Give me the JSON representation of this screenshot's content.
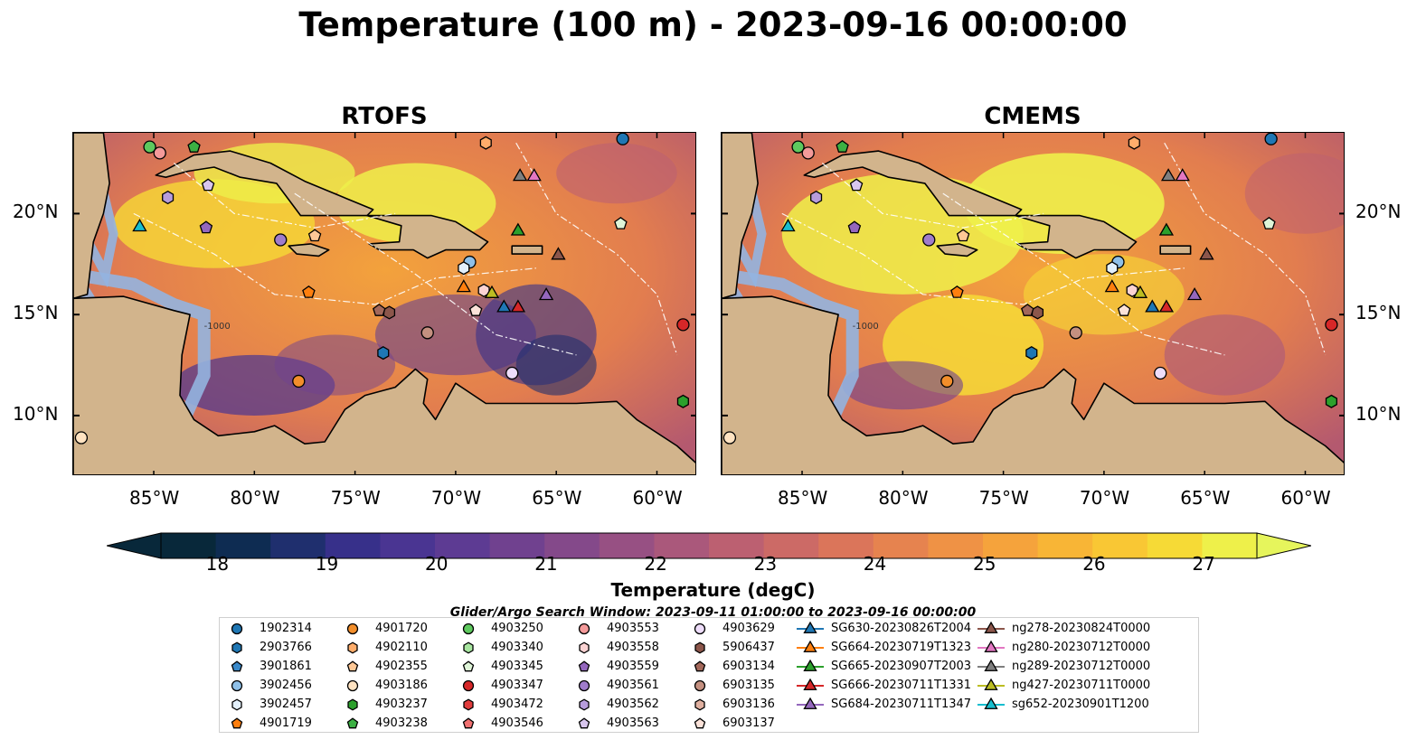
{
  "title": "Temperature (100 m) - 2023-09-16 00:00:00",
  "panels": [
    {
      "title": "RTOFS"
    },
    {
      "title": "CMEMS"
    }
  ],
  "axes": {
    "lon_ticks": [
      "85°W",
      "80°W",
      "75°W",
      "70°W",
      "65°W",
      "60°W"
    ],
    "lat_ticks": [
      "20°N",
      "15°N",
      "10°N"
    ],
    "contour_label": "-1000"
  },
  "colorbar": {
    "ticks": [
      "18",
      "19",
      "20",
      "21",
      "22",
      "23",
      "24",
      "25",
      "26",
      "27"
    ],
    "label": "Temperature (degC)",
    "colors": [
      "#08283a",
      "#0e2c52",
      "#1f2f6e",
      "#37308a",
      "#4a3592",
      "#5d3b93",
      "#70418f",
      "#84498a",
      "#975083",
      "#aa587b",
      "#bc6071",
      "#cc6a66",
      "#db755a",
      "#e6834f",
      "#ef9245",
      "#f5a33c",
      "#f8b536",
      "#f9c734",
      "#f6da36",
      "#eef04a"
    ]
  },
  "legend": {
    "title": "Glider/Argo Search Window: 2023-09-11 01:00:00 to 2023-09-16 00:00:00",
    "columns": [
      [
        {
          "label": "1902314",
          "marker": "circle",
          "color": "#1f77b4"
        },
        {
          "label": "2903766",
          "marker": "hexagon",
          "color": "#1f77b4"
        },
        {
          "label": "3901861",
          "marker": "pentagon",
          "color": "#3a89c9"
        },
        {
          "label": "3902456",
          "marker": "circle",
          "color": "#8fc0e8"
        },
        {
          "label": "3902457",
          "marker": "hexagon",
          "color": "#e3f0fb"
        },
        {
          "label": "4901719",
          "marker": "pentagon",
          "color": "#ff7f0e"
        }
      ],
      [
        {
          "label": "4901720",
          "marker": "circle",
          "color": "#f28e2b"
        },
        {
          "label": "4902110",
          "marker": "hexagon",
          "color": "#ffad6b"
        },
        {
          "label": "4902355",
          "marker": "pentagon",
          "color": "#ffc896"
        },
        {
          "label": "4903186",
          "marker": "circle",
          "color": "#ffe3c2"
        },
        {
          "label": "4903237",
          "marker": "hexagon",
          "color": "#2ca02c"
        },
        {
          "label": "4903238",
          "marker": "pentagon",
          "color": "#3cb043"
        }
      ],
      [
        {
          "label": "4903250",
          "marker": "circle",
          "color": "#5ec95e"
        },
        {
          "label": "4903340",
          "marker": "hexagon",
          "color": "#a8e6a0"
        },
        {
          "label": "4903345",
          "marker": "pentagon",
          "color": "#dff5d8"
        },
        {
          "label": "4903347",
          "marker": "circle",
          "color": "#d62728"
        },
        {
          "label": "4903472",
          "marker": "hexagon",
          "color": "#e03c3c"
        },
        {
          "label": "4903546",
          "marker": "pentagon",
          "color": "#f07070"
        }
      ],
      [
        {
          "label": "4903553",
          "marker": "circle",
          "color": "#f49a9a"
        },
        {
          "label": "4903558",
          "marker": "hexagon",
          "color": "#fbd3d3"
        },
        {
          "label": "4903559",
          "marker": "pentagon",
          "color": "#9467bd"
        },
        {
          "label": "4903561",
          "marker": "circle",
          "color": "#a07ccb"
        },
        {
          "label": "4903562",
          "marker": "hexagon",
          "color": "#b79cdc"
        },
        {
          "label": "4903563",
          "marker": "pentagon",
          "color": "#d8c6ee"
        }
      ],
      [
        {
          "label": "4903629",
          "marker": "circle",
          "color": "#eeddfa"
        },
        {
          "label": "5906437",
          "marker": "hexagon",
          "color": "#8c564b"
        },
        {
          "label": "6903134",
          "marker": "pentagon",
          "color": "#a3685a"
        },
        {
          "label": "6903135",
          "marker": "circle",
          "color": "#c49080"
        },
        {
          "label": "6903136",
          "marker": "hexagon",
          "color": "#e0b0a0"
        },
        {
          "label": "6903137",
          "marker": "pentagon",
          "color": "#fbe2d9"
        }
      ],
      [
        {
          "label": "SG630-20230826T2004",
          "marker": "triangle",
          "color": "#1f77b4"
        },
        {
          "label": "SG664-20230719T1323",
          "marker": "triangle",
          "color": "#ff7f0e"
        },
        {
          "label": "SG665-20230907T2003",
          "marker": "triangle",
          "color": "#2ca02c"
        },
        {
          "label": "SG666-20230711T1331",
          "marker": "triangle",
          "color": "#d62728"
        },
        {
          "label": "SG684-20230711T1347",
          "marker": "triangle",
          "color": "#9467bd"
        }
      ],
      [
        {
          "label": "ng278-20230824T0000",
          "marker": "triangle",
          "color": "#8c564b"
        },
        {
          "label": "ng280-20230712T0000",
          "marker": "triangle",
          "color": "#e377c2"
        },
        {
          "label": "ng289-20230712T0000",
          "marker": "triangle",
          "color": "#7f7f7f"
        },
        {
          "label": "ng427-20230711T0000",
          "marker": "triangle",
          "color": "#bcbd22"
        },
        {
          "label": "sg652-20230901T1200",
          "marker": "triangle",
          "color": "#17becf"
        }
      ]
    ]
  },
  "map_data": {
    "extent": {
      "lon": [
        -89,
        -58
      ],
      "lat": [
        7,
        24
      ]
    },
    "land_color": "#d2b48c",
    "shelf_color": "#94b4e0",
    "observations": [
      {
        "id": "1902314",
        "lon": -61.7,
        "lat": 23.7
      },
      {
        "id": "2903766",
        "lon": -73.6,
        "lat": 13.1
      },
      {
        "id": "3902456",
        "lon": -69.3,
        "lat": 17.6
      },
      {
        "id": "3902457",
        "lon": -69.6,
        "lat": 17.3
      },
      {
        "id": "4901719",
        "lon": -77.3,
        "lat": 16.1
      },
      {
        "id": "4901720",
        "lon": -77.8,
        "lat": 11.7
      },
      {
        "id": "4902110",
        "lon": -68.5,
        "lat": 23.5
      },
      {
        "id": "4902355",
        "lon": -77.0,
        "lat": 18.9
      },
      {
        "id": "4903186",
        "lon": -88.6,
        "lat": 8.9
      },
      {
        "id": "4903237",
        "lon": -58.7,
        "lat": 10.7
      },
      {
        "id": "4903238",
        "lon": -83.0,
        "lat": 23.3
      },
      {
        "id": "4903250",
        "lon": -85.2,
        "lat": 23.3
      },
      {
        "id": "4903345",
        "lon": -61.8,
        "lat": 19.5
      },
      {
        "id": "4903347",
        "lon": -58.7,
        "lat": 14.5
      },
      {
        "id": "4903553",
        "lon": -84.7,
        "lat": 23.0
      },
      {
        "id": "4903558",
        "lon": -68.6,
        "lat": 16.2
      },
      {
        "id": "4903559",
        "lon": -82.4,
        "lat": 19.3
      },
      {
        "id": "4903561",
        "lon": -78.7,
        "lat": 18.7
      },
      {
        "id": "4903562",
        "lon": -84.3,
        "lat": 20.8
      },
      {
        "id": "4903563",
        "lon": -82.3,
        "lat": 21.4
      },
      {
        "id": "4903629",
        "lon": -67.2,
        "lat": 12.1
      },
      {
        "id": "5906437",
        "lon": -73.3,
        "lat": 15.1
      },
      {
        "id": "6903134",
        "lon": -73.8,
        "lat": 15.2
      },
      {
        "id": "6903135",
        "lon": -71.4,
        "lat": 14.1
      },
      {
        "id": "6903137",
        "lon": -69.0,
        "lat": 15.2
      },
      {
        "id": "SG630-20230826T2004",
        "lon": -67.6,
        "lat": 15.4
      },
      {
        "id": "SG664-20230719T1323",
        "lon": -69.6,
        "lat": 16.4
      },
      {
        "id": "SG665-20230907T2003",
        "lon": -66.9,
        "lat": 19.2
      },
      {
        "id": "SG666-20230711T1331",
        "lon": -66.9,
        "lat": 15.4
      },
      {
        "id": "SG684-20230711T1347",
        "lon": -65.5,
        "lat": 16.0
      },
      {
        "id": "ng278-20230824T0000",
        "lon": -64.9,
        "lat": 18.0
      },
      {
        "id": "ng280-20230712T0000",
        "lon": -66.1,
        "lat": 21.9
      },
      {
        "id": "ng289-20230712T0000",
        "lon": -66.8,
        "lat": 21.9
      },
      {
        "id": "ng427-20230711T0000",
        "lon": -68.2,
        "lat": 16.1
      },
      {
        "id": "sg652-20230901T1200",
        "lon": -85.7,
        "lat": 19.4
      }
    ]
  }
}
